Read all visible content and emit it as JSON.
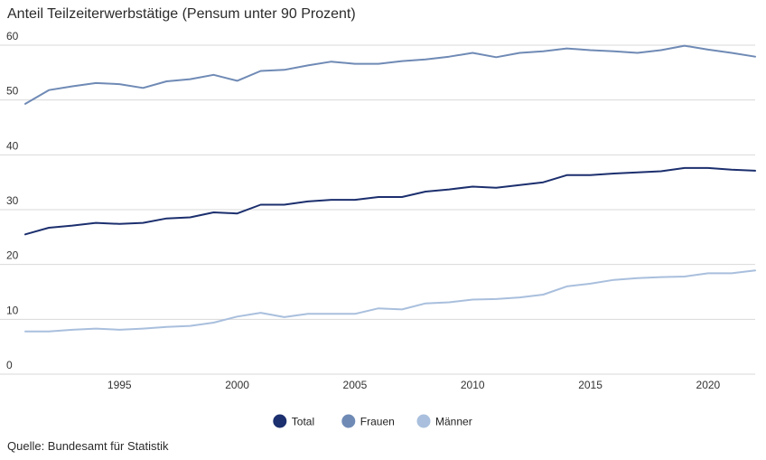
{
  "chart_data": {
    "type": "line",
    "title": "Anteil Teilzeiterwerbstätige (Pensum unter 90 Prozent)",
    "xlabel": "",
    "ylabel": "",
    "ylim": [
      0,
      60
    ],
    "xlim": [
      1991,
      2022
    ],
    "yticks": [
      0,
      10,
      20,
      30,
      40,
      50,
      60
    ],
    "xticks": [
      1995,
      2000,
      2005,
      2010,
      2015,
      2020
    ],
    "grid": true,
    "legend_position": "bottom-center",
    "x": [
      1991,
      1992,
      1993,
      1994,
      1995,
      1996,
      1997,
      1998,
      1999,
      2000,
      2001,
      2002,
      2003,
      2004,
      2005,
      2006,
      2007,
      2008,
      2009,
      2010,
      2011,
      2012,
      2013,
      2014,
      2015,
      2016,
      2017,
      2018,
      2019,
      2020,
      2021,
      2022
    ],
    "series": [
      {
        "name": "Total",
        "color": "#1c2f6e",
        "values": [
          25.5,
          26.7,
          27.1,
          27.6,
          27.4,
          27.6,
          28.4,
          28.6,
          29.5,
          29.3,
          30.9,
          30.9,
          31.5,
          31.8,
          31.8,
          32.3,
          32.3,
          33.3,
          33.7,
          34.2,
          34.0,
          34.5,
          35.0,
          36.3,
          36.3,
          36.6,
          36.8,
          37.0,
          37.6,
          37.6,
          37.3,
          37.1
        ]
      },
      {
        "name": "Frauen",
        "color": "#6f8ab5",
        "values": [
          49.3,
          51.8,
          52.5,
          53.1,
          52.9,
          52.2,
          53.4,
          53.8,
          54.6,
          53.5,
          55.3,
          55.5,
          56.3,
          57.0,
          56.6,
          56.6,
          57.1,
          57.4,
          57.9,
          58.6,
          57.8,
          58.6,
          58.9,
          59.4,
          59.1,
          58.9,
          58.6,
          59.1,
          59.9,
          59.2,
          58.6,
          57.9
        ]
      },
      {
        "name": "Männer",
        "color": "#a9bfdd",
        "values": [
          7.8,
          7.8,
          8.1,
          8.3,
          8.1,
          8.3,
          8.6,
          8.8,
          9.4,
          10.5,
          11.2,
          10.4,
          11.0,
          11.0,
          11.0,
          12.0,
          11.8,
          12.9,
          13.1,
          13.6,
          13.7,
          14.0,
          14.5,
          16.0,
          16.5,
          17.2,
          17.5,
          17.7,
          17.8,
          18.4,
          18.4,
          18.9
        ]
      }
    ]
  },
  "footer": {
    "source": "Quelle: Bundesamt für Statistik"
  }
}
